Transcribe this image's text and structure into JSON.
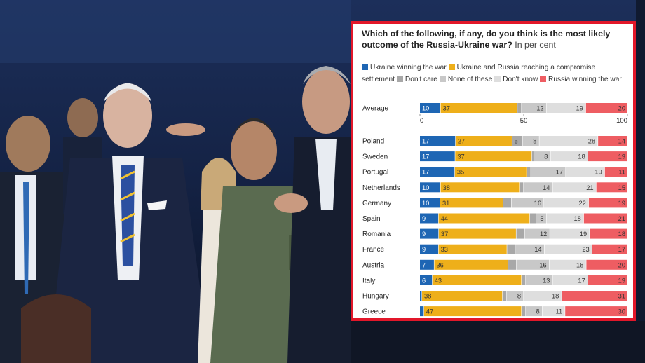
{
  "colors": {
    "ukraine_winning": "#1e66b4",
    "compromise": "#eeaf1a",
    "dont_care": "#a8a8a8",
    "none_of_these": "#c8c8c8",
    "dont_know": "#dedede",
    "russia_winning": "#ee5d62",
    "panel_border": "#e2172a"
  },
  "chart_data": {
    "type": "bar",
    "orientation": "horizontal",
    "stacked": true,
    "title": "Which of the following, if any, do you think is the most likely outcome of the Russia-Ukraine war?",
    "subtitle": "In per cent",
    "xlim": [
      0,
      100
    ],
    "xticks": [
      "0",
      "50",
      "100"
    ],
    "legend_position": "top",
    "series": [
      {
        "name": "Ukraine winning the war",
        "key": "ukraine_winning"
      },
      {
        "name": "Ukraine and Russia reaching a compromise settlement",
        "key": "compromise"
      },
      {
        "name": "Don't care",
        "key": "dont_care"
      },
      {
        "name": "None of these",
        "key": "none_of_these"
      },
      {
        "name": "Don't know",
        "key": "dont_know"
      },
      {
        "name": "Russia winning the war",
        "key": "russia_winning"
      }
    ],
    "average": {
      "label": "Average",
      "values": [
        10,
        37,
        2,
        12,
        19,
        20
      ],
      "labels": [
        "10",
        "37",
        "",
        "12",
        "19",
        "20"
      ]
    },
    "rows": [
      {
        "label": "Poland",
        "values": [
          17,
          27,
          5,
          8,
          28,
          14
        ],
        "labels": [
          "17",
          "27",
          "5",
          "8",
          "28",
          "14"
        ]
      },
      {
        "label": "Sweden",
        "values": [
          17,
          37,
          1,
          8,
          18,
          19
        ],
        "labels": [
          "17",
          "37",
          "",
          "8",
          "18",
          "19"
        ]
      },
      {
        "label": "Portugal",
        "values": [
          17,
          35,
          2,
          17,
          19,
          11
        ],
        "labels": [
          "17",
          "35",
          "",
          "17",
          "19",
          "11"
        ]
      },
      {
        "label": "Netherlands",
        "values": [
          10,
          38,
          2,
          14,
          21,
          15
        ],
        "labels": [
          "10",
          "38",
          "",
          "14",
          "21",
          "15"
        ]
      },
      {
        "label": "Germany",
        "values": [
          10,
          31,
          4,
          16,
          22,
          19
        ],
        "labels": [
          "10",
          "31",
          "",
          "16",
          "22",
          "19"
        ]
      },
      {
        "label": "Spain",
        "values": [
          9,
          44,
          3,
          5,
          18,
          21
        ],
        "labels": [
          "9",
          "44",
          "",
          "5",
          "18",
          "21"
        ]
      },
      {
        "label": "Romania",
        "values": [
          9,
          37,
          4,
          12,
          19,
          18
        ],
        "labels": [
          "9",
          "37",
          "",
          "12",
          "19",
          "18"
        ]
      },
      {
        "label": "France",
        "values": [
          9,
          33,
          4,
          14,
          23,
          17
        ],
        "labels": [
          "9",
          "33",
          "",
          "14",
          "23",
          "17"
        ]
      },
      {
        "label": "Austria",
        "values": [
          7,
          36,
          4,
          16,
          18,
          20
        ],
        "labels": [
          "7",
          "36",
          "",
          "16",
          "18",
          "20"
        ]
      },
      {
        "label": "Italy",
        "values": [
          6,
          43,
          2,
          13,
          17,
          19
        ],
        "labels": [
          "6",
          "43",
          "",
          "13",
          "17",
          "19"
        ]
      },
      {
        "label": "Hungary",
        "values": [
          1,
          38,
          2,
          8,
          18,
          31
        ],
        "labels": [
          "",
          "38",
          "",
          "8",
          "18",
          "31"
        ]
      },
      {
        "label": "Greece",
        "values": [
          2,
          47,
          2,
          8,
          11,
          30
        ],
        "labels": [
          "",
          "47",
          "",
          "8",
          "11",
          "30"
        ]
      }
    ]
  }
}
